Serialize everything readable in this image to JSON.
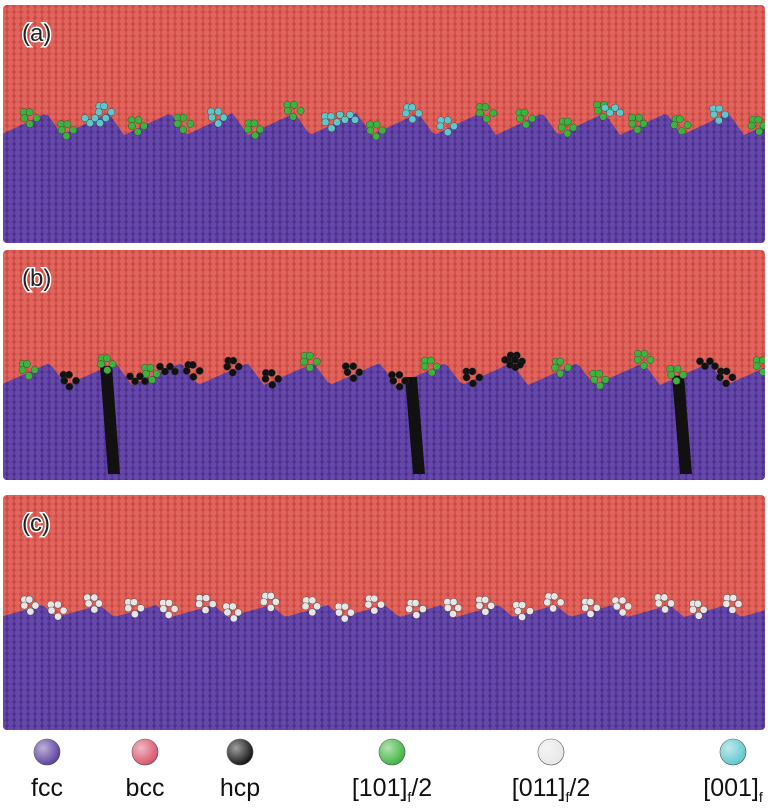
{
  "panels": [
    {
      "label": "(a)"
    },
    {
      "label": "(b)"
    },
    {
      "label": "(c)"
    }
  ],
  "legend": [
    {
      "label": "fcc",
      "color": "#5a3d9e"
    },
    {
      "label": "bcc",
      "color": "#d9506a"
    },
    {
      "label": "hcp",
      "color": "#111111"
    },
    {
      "label": "[101]",
      "subscript": "f",
      "suffix": "/2",
      "color": "#3cb43c"
    },
    {
      "label": "[011]",
      "subscript": "f",
      "suffix": "/2",
      "color": "#e6e6e6"
    },
    {
      "label": "[001]",
      "subscript": "f",
      "color": "#5cc8cc"
    }
  ]
}
